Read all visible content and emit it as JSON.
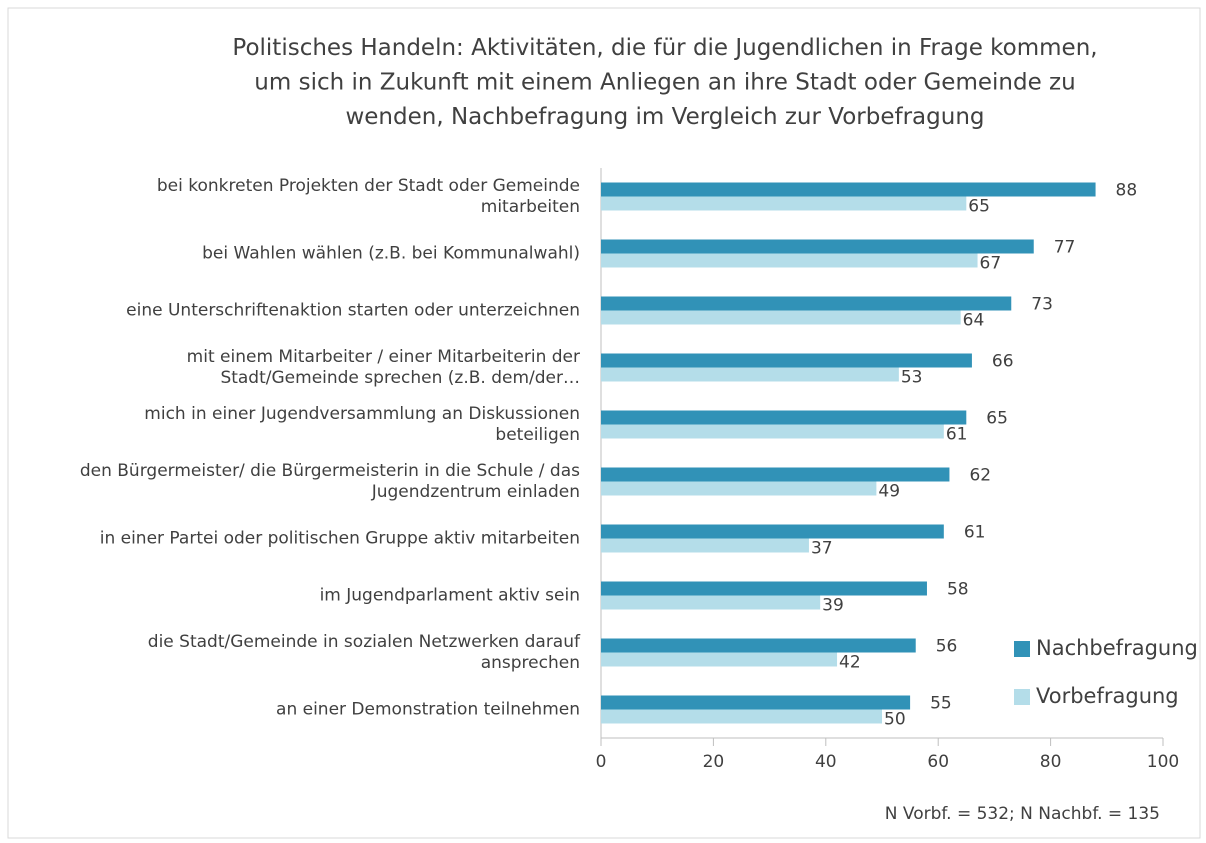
{
  "chart_data": {
    "type": "hbar",
    "title": "Politisches Handeln: Aktivitäten, die für die Jugendlichen in Frage kommen,\num sich in Zukunft mit einem Anliegen an ihre Stadt oder Gemeinde zu\nwenden, Nachbefragung im Vergleich zur Vorbefragung",
    "categories": [
      "bei konkreten Projekten der Stadt oder Gemeinde\nmitarbeiten",
      "bei Wahlen wählen (z.B. bei Kommunalwahl)",
      "eine Unterschriftenaktion starten oder unterzeichnen",
      "mit einem Mitarbeiter / einer Mitarbeiterin der\nStadt/Gemeinde sprechen (z.B. dem/der…",
      "mich in einer Jugendversammlung an Diskussionen\nbeteiligen",
      "den Bürgermeister/ die Bürgermeisterin in die Schule / das\nJugendzentrum einladen",
      "in einer Partei oder politischen Gruppe aktiv mitarbeiten",
      "im Jugendparlament aktiv sein",
      "die Stadt/Gemeinde in sozialen Netzwerken darauf\nansprechen",
      "an einer Demonstration teilnehmen"
    ],
    "series": [
      {
        "name": "Nachbefragung",
        "color": "#3192b7",
        "values": [
          88,
          77,
          73,
          66,
          65,
          62,
          61,
          58,
          56,
          55
        ]
      },
      {
        "name": "Vorbefragung",
        "color": "#b4dde9",
        "values": [
          65,
          67,
          64,
          53,
          61,
          49,
          37,
          39,
          42,
          50
        ]
      }
    ],
    "xlim": [
      0,
      100
    ],
    "xticks": [
      0,
      20,
      40,
      60,
      80,
      100
    ],
    "legend": "right",
    "note": "N Vorbf. = 532;  N Nachbf. = 135"
  }
}
